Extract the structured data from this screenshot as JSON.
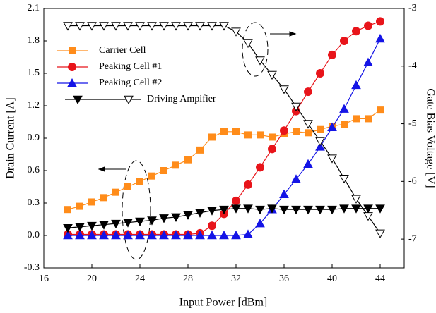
{
  "chart_data": {
    "type": "line",
    "x_label": "Input Power [dBm]",
    "y_label": "Drain Current [A]",
    "y2_label": "Gate Bias Voltage [V]",
    "x": [
      18,
      19,
      20,
      21,
      22,
      23,
      24,
      25,
      26,
      27,
      28,
      29,
      30,
      31,
      32,
      33,
      34,
      35,
      36,
      37,
      38,
      39,
      40,
      41,
      42,
      43,
      44
    ],
    "xlim": [
      16,
      46
    ],
    "xticks": [
      16,
      20,
      24,
      28,
      32,
      36,
      40,
      44
    ],
    "ylim": [
      -0.3,
      2.1
    ],
    "yticks": [
      -0.3,
      {
        "value": 0,
        "label": "0.0"
      },
      0.3,
      0.6,
      0.9,
      1.2,
      1.5,
      1.8,
      2.1
    ],
    "y2lim": [
      -7.5,
      -3
    ],
    "y2ticks": [
      -3,
      -4,
      -5,
      -6,
      -7
    ],
    "series": [
      {
        "name": "Carrier Cell",
        "color": "#ff8c1a",
        "marker": "square",
        "values": [
          0.24,
          0.27,
          0.31,
          0.35,
          0.4,
          0.45,
          0.5,
          0.55,
          0.6,
          0.65,
          0.7,
          0.79,
          0.91,
          0.96,
          0.96,
          0.93,
          0.93,
          0.91,
          0.94,
          0.96,
          0.95,
          0.98,
          1.01,
          1.03,
          1.08,
          1.08,
          1.16
        ]
      },
      {
        "name": "Peaking Cell #1",
        "color": "#e8141a",
        "marker": "circle",
        "values": [
          0.01,
          0.01,
          0.01,
          0.01,
          0.01,
          0.01,
          0.01,
          0.01,
          0.01,
          0.01,
          0.01,
          0.02,
          0.09,
          0.2,
          0.32,
          0.47,
          0.63,
          0.8,
          0.97,
          1.15,
          1.33,
          1.5,
          1.67,
          1.8,
          1.89,
          1.94,
          1.98
        ]
      },
      {
        "name": "Peaking Cell #2",
        "color": "#1414e6",
        "marker": "triangle",
        "values": [
          0,
          0,
          0,
          0,
          0,
          0,
          0,
          0,
          0,
          0,
          0,
          0,
          0,
          0,
          0,
          0.01,
          0.11,
          0.24,
          0.38,
          0.52,
          0.66,
          0.82,
          1.0,
          1.17,
          1.39,
          1.6,
          1.82
        ]
      },
      {
        "name": "Driving Ampifier",
        "color": "#000000",
        "marker": "down-triangle",
        "values": [
          0.07,
          0.08,
          0.09,
          0.1,
          0.11,
          0.12,
          0.13,
          0.14,
          0.16,
          0.17,
          0.19,
          0.21,
          0.23,
          0.24,
          0.25,
          0.25,
          0.24,
          0.25,
          0.24,
          0.24,
          0.24,
          0.24,
          0.24,
          0.25,
          0.25,
          0.25,
          0.25
        ]
      },
      {
        "color": "#000000",
        "marker": "open-down-triangle",
        "axis": "y2",
        "values": [
          -3.3,
          -3.3,
          -3.3,
          -3.3,
          -3.3,
          -3.3,
          -3.3,
          -3.3,
          -3.3,
          -3.3,
          -3.3,
          -3.3,
          -3.3,
          -3.3,
          -3.4,
          -3.6,
          -3.9,
          -4.15,
          -4.4,
          -4.7,
          -5.0,
          -5.3,
          -5.6,
          -5.95,
          -6.3,
          -6.6,
          -6.9
        ]
      }
    ]
  }
}
